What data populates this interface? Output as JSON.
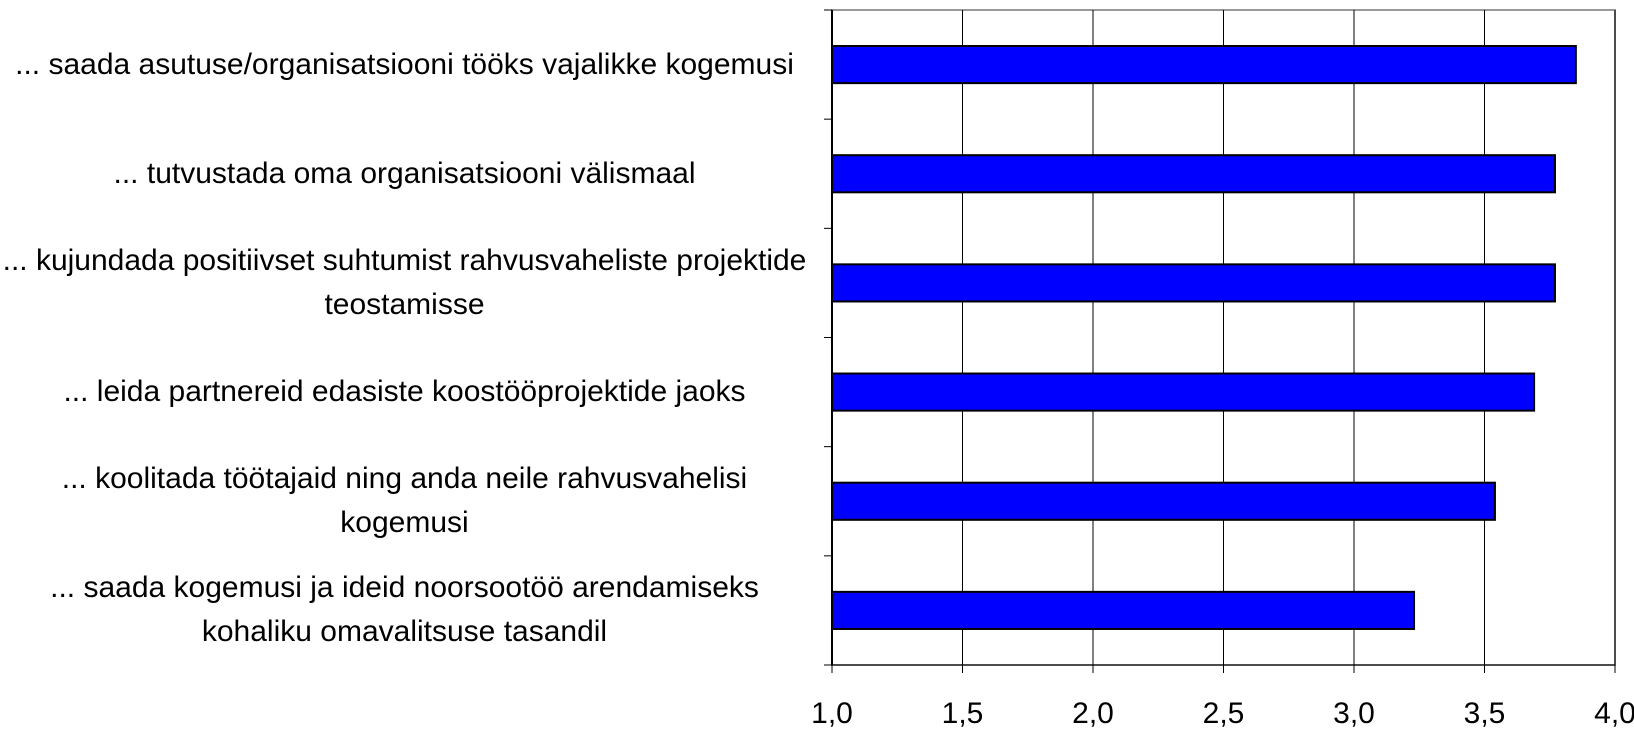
{
  "chart_data": {
    "type": "bar",
    "orientation": "horizontal",
    "categories": [
      "... saada asutuse/organisatsiooni tööks vajalikke kogemusi",
      "... tutvustada oma organisatsiooni välismaal",
      "... kujundada positiivset suhtumist rahvusvaheliste projektide teostamisse",
      "... leida partnereid edasiste koostööprojektide jaoks",
      "... koolitada töötajaid ning anda neile rahvusvahelisi kogemusi",
      "... saada kogemusi ja ideid noorsootöö arendamiseks kohaliku omavalitsuse tasandil"
    ],
    "values": [
      3.85,
      3.77,
      3.77,
      3.69,
      3.54,
      3.23
    ],
    "color": "#0000ff",
    "xlim": [
      1,
      4
    ],
    "xticks": [
      {
        "value": 1,
        "label": "1,0"
      },
      {
        "value": 1.5,
        "label": "1,5"
      },
      {
        "value": 2,
        "label": "2,0"
      },
      {
        "value": 2.5,
        "label": "2,5"
      },
      {
        "value": 3,
        "label": "3,0"
      },
      {
        "value": 3.5,
        "label": "3,5"
      },
      {
        "value": 4,
        "label": "4,0"
      }
    ],
    "grid": true
  }
}
